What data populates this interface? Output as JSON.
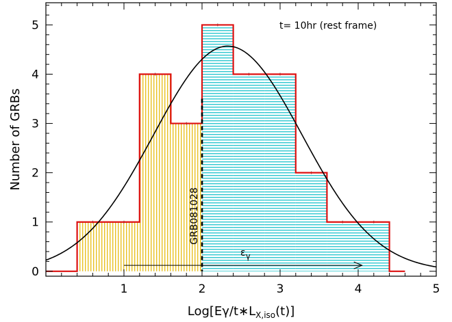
{
  "chart_data": {
    "type": "bar",
    "xlabel": "Log[Eγ/t∗L",
    "xlabel_sub": "X,iso",
    "xlabel_tail": "(t)]",
    "ylabel": "Number of GRBs",
    "xlim": [
      0,
      5
    ],
    "ylim": [
      -0.1,
      5.45
    ],
    "xticks": [
      1,
      2,
      3,
      4,
      5
    ],
    "xtick_labels": [
      "1",
      "2",
      "3",
      "4",
      "5"
    ],
    "yticks": [
      0,
      1,
      2,
      3,
      4,
      5
    ],
    "ytick_labels": [
      "0",
      "1",
      "2",
      "3",
      "4",
      "5"
    ],
    "bin_edges": [
      0.4,
      0.8,
      1.2,
      1.6,
      2.0,
      2.4,
      2.8,
      3.2,
      3.6,
      4.0,
      4.4
    ],
    "counts": [
      1,
      1,
      4,
      3,
      5,
      4,
      4,
      2,
      1,
      1
    ],
    "fill_split": 2.0,
    "fill_colors": {
      "left": "#e8c020",
      "right": "#2ec8d0"
    },
    "outline_color": "#dd1111",
    "gaussian_fit": {
      "amplitude": 4.57,
      "mean": 2.33,
      "sigma": 0.95
    },
    "annotations": {
      "time_label": "t= 10hr (rest frame)",
      "grb_label": "GRB081028",
      "grb_line_x": 2.0,
      "grb_line_top": 3.5,
      "epsilon_label": "ε",
      "epsilon_sub": "γ",
      "arrow_x": [
        1.0,
        4.05
      ],
      "arrow_y": 0.12
    }
  }
}
